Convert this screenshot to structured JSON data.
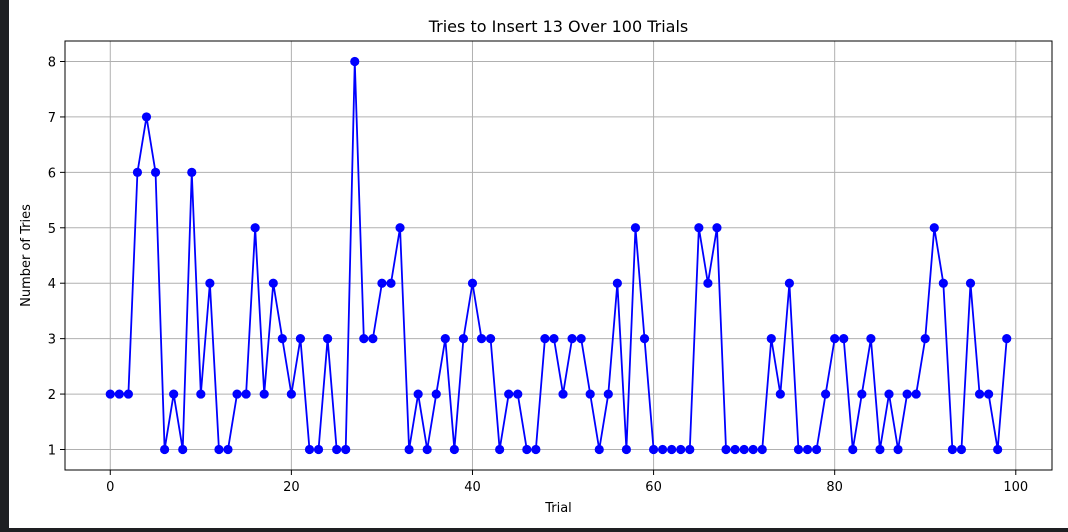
{
  "chart_data": {
    "type": "line",
    "title": "Tries to Insert 13 Over 100 Trials",
    "xlabel": "Trial",
    "ylabel": "Number of Tries",
    "xlim": [
      -5,
      104
    ],
    "ylim": [
      0.63,
      8.37
    ],
    "xticks": [
      0,
      20,
      40,
      60,
      80,
      100
    ],
    "yticks": [
      1,
      2,
      3,
      4,
      5,
      6,
      7,
      8
    ],
    "grid": true,
    "marker": "circle",
    "color": "#0000ff",
    "series": [
      {
        "values": [
          2,
          2,
          2,
          6,
          7,
          6,
          1,
          2,
          1,
          6,
          2,
          4,
          1,
          1,
          2,
          2,
          5,
          2,
          4,
          3,
          2,
          3,
          1,
          1,
          3,
          1,
          1,
          8,
          3,
          3,
          4,
          4,
          5,
          1,
          2,
          1,
          2,
          3,
          1,
          3,
          4,
          3,
          3,
          1,
          2,
          2,
          1,
          1,
          3,
          3,
          2,
          3,
          3,
          2,
          1,
          2,
          4,
          1,
          5,
          3,
          1,
          1,
          1,
          1,
          1,
          5,
          4,
          5,
          1,
          1,
          1,
          1,
          1,
          3,
          2,
          4,
          1,
          1,
          1,
          2,
          3,
          3,
          1,
          2,
          3,
          1,
          2,
          1,
          2,
          2,
          3,
          5,
          4,
          1,
          1,
          4,
          2,
          2,
          1,
          3
        ]
      }
    ]
  }
}
